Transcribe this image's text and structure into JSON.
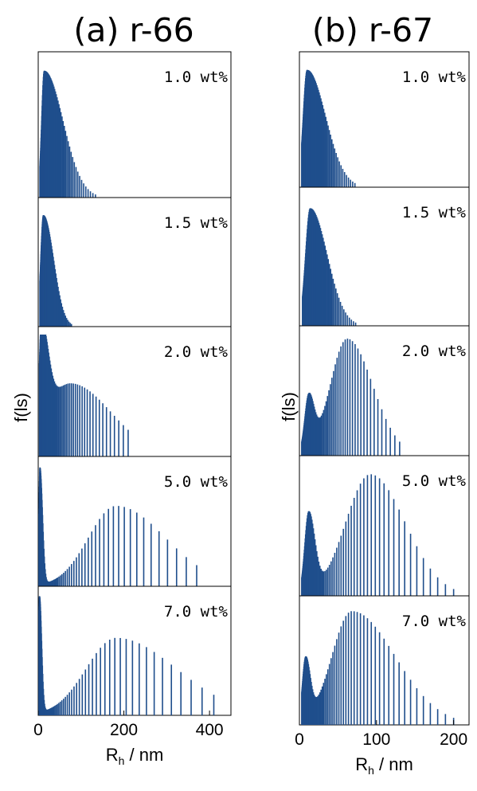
{
  "chart_data": [
    {
      "type": "bar",
      "title": "(a) r-66",
      "ylabel": "f(ls)",
      "xlabel": {
        "main": "R",
        "sub": "h",
        "unit": " / nm"
      },
      "xlim": [
        0,
        450
      ],
      "xticks": [
        0,
        200,
        400
      ],
      "color": "#1f4e8c",
      "panels": [
        {
          "label": "1.0 wt%",
          "components": [
            {
              "peak": 14,
              "rise": 6,
              "fall": 44,
              "amp": 0.92
            }
          ],
          "cutoff": [
            4,
            140
          ]
        },
        {
          "label": "1.5 wt%",
          "components": [
            {
              "peak": 12,
              "rise": 6,
              "fall": 24,
              "amp": 0.92
            }
          ],
          "cutoff": [
            4,
            84
          ]
        },
        {
          "label": "2.0 wt%",
          "components": [
            {
              "peak": 7,
              "rise": 4,
              "fall": 16,
              "amp": 0.78
            },
            {
              "peak": 75,
              "rise": 60,
              "fall": 95,
              "amp": 0.6
            }
          ],
          "cutoff": [
            3,
            210
          ]
        },
        {
          "label": "5.0 wt%",
          "components": [
            {
              "peak": 4,
              "rise": 2,
              "fall": 6,
              "amp": 0.96
            },
            {
              "peak": 182,
              "rise": 65,
              "fall": 115,
              "amp": 0.66
            }
          ],
          "cutoff": [
            2,
            370
          ]
        },
        {
          "label": "7.0 wt%",
          "components": [
            {
              "peak": 3,
              "rise": 2,
              "fall": 5,
              "amp": 0.96
            },
            {
              "peak": 182,
              "rise": 70,
              "fall": 140,
              "amp": 0.64
            }
          ],
          "cutoff": [
            2,
            410
          ]
        }
      ]
    },
    {
      "type": "bar",
      "title": "(b) r-67",
      "ylabel": "f(ls)",
      "xlabel": {
        "main": "R",
        "sub": "h",
        "unit": " / nm"
      },
      "xlim": [
        0,
        220
      ],
      "xticks": [
        0,
        100,
        200
      ],
      "color": "#1f4e8c",
      "panels": [
        {
          "label": "1.0 wt%",
          "components": [
            {
              "peak": 10,
              "rise": 5,
              "fall": 24,
              "amp": 0.92
            }
          ],
          "cutoff": [
            3,
            72
          ]
        },
        {
          "label": "1.5 wt%",
          "components": [
            {
              "peak": 14,
              "rise": 6,
              "fall": 22,
              "amp": 0.9
            }
          ],
          "cutoff": [
            4,
            82
          ]
        },
        {
          "label": "2.0 wt%",
          "components": [
            {
              "peak": 12,
              "rise": 5,
              "fall": 7,
              "amp": 0.44
            },
            {
              "peak": 62,
              "rise": 22,
              "fall": 33,
              "amp": 0.96
            }
          ],
          "cutoff": [
            3,
            130
          ]
        },
        {
          "label": "5.0 wt%",
          "components": [
            {
              "peak": 12,
              "rise": 5,
              "fall": 8,
              "amp": 0.6
            },
            {
              "peak": 92,
              "rise": 32,
              "fall": 45,
              "amp": 0.92
            }
          ],
          "cutoff": [
            3,
            200
          ]
        },
        {
          "label": "7.0 wt%",
          "components": [
            {
              "peak": 8,
              "rise": 4,
              "fall": 6,
              "amp": 0.5
            },
            {
              "peak": 68,
              "rise": 26,
              "fall": 56,
              "amp": 0.94
            }
          ],
          "cutoff": [
            3,
            200
          ]
        }
      ]
    }
  ]
}
